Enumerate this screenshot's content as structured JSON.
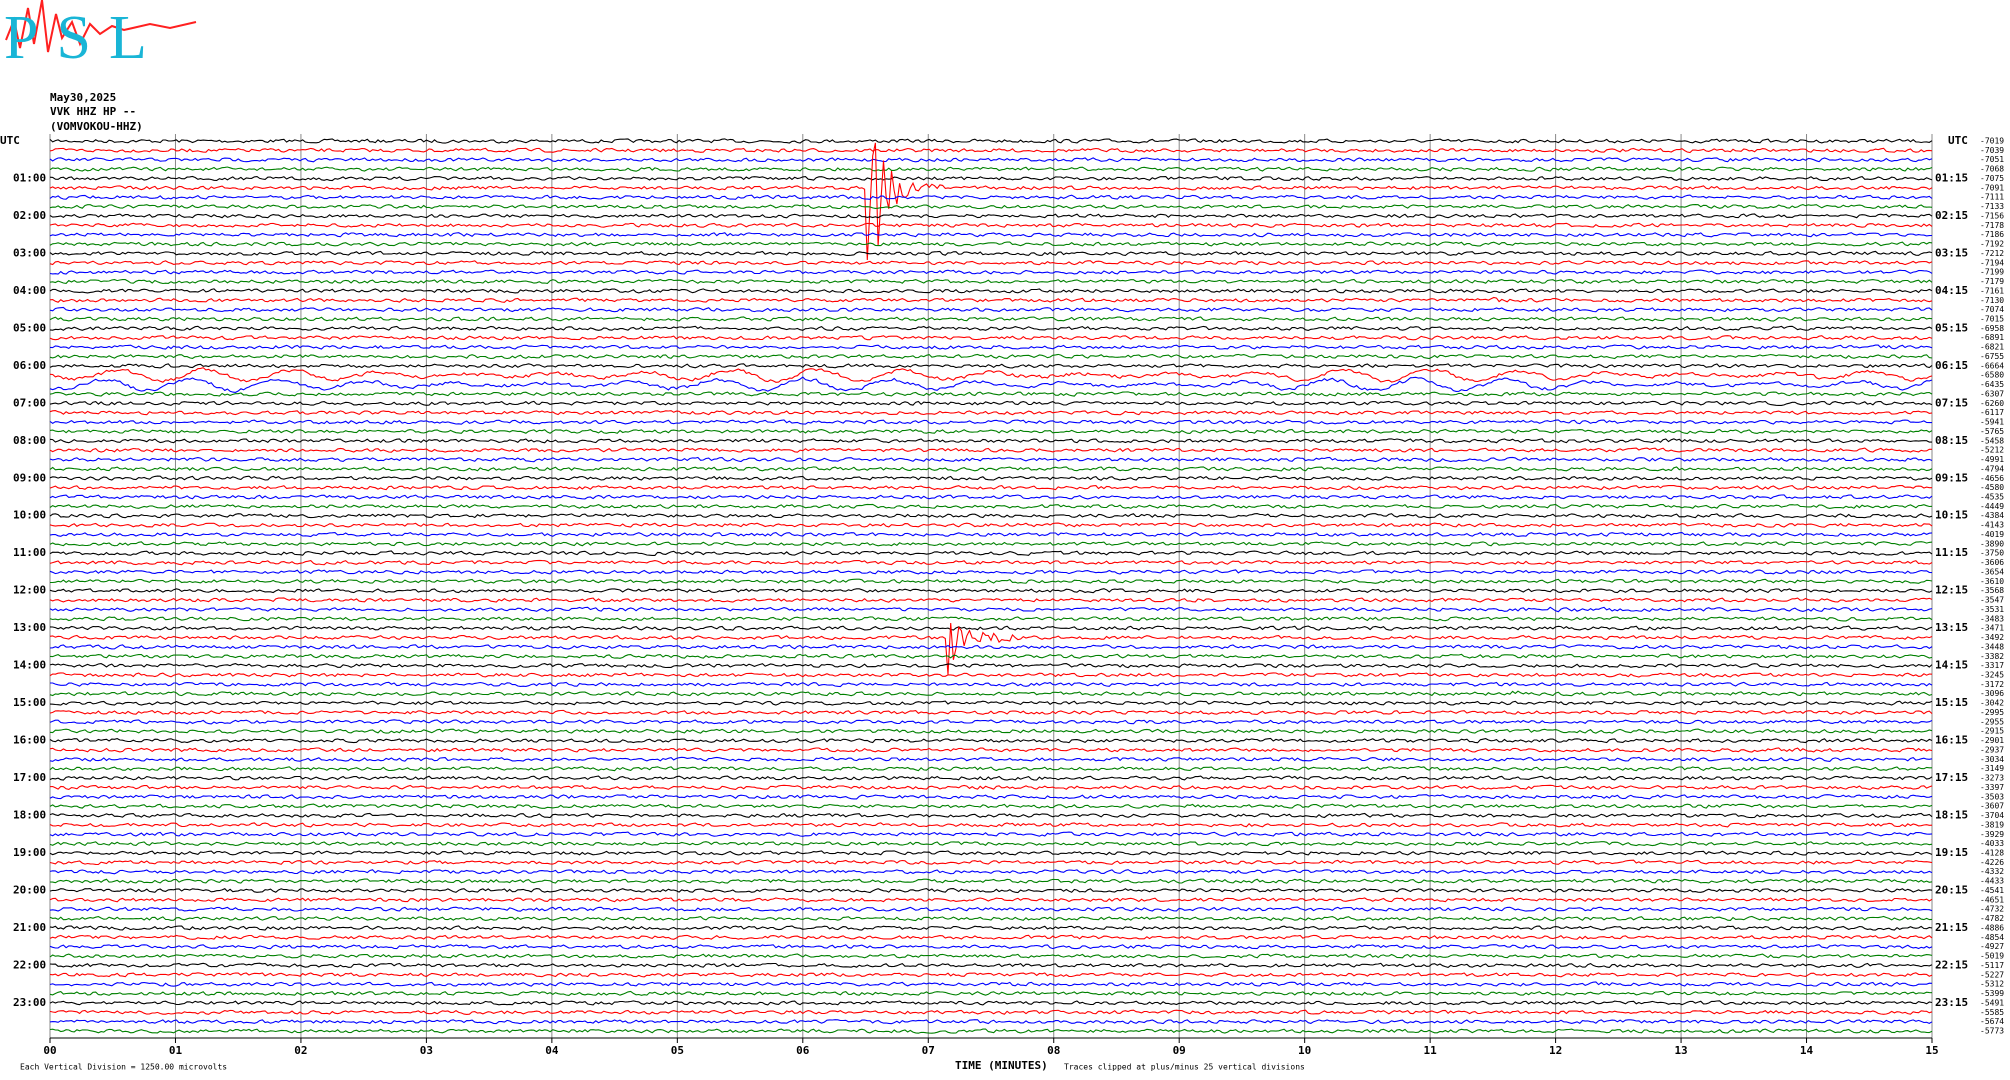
{
  "chart_data": {
    "type": "helicorder",
    "logo": "PSL",
    "date": "May30,2025",
    "station": "VVK HHZ HP --",
    "channel": "(VOMVOKOU-HHZ)",
    "left_axis_title": "UTC",
    "right_axis_title": "UTC",
    "left_labels": [
      "01:00",
      "02:00",
      "03:00",
      "04:00",
      "05:00",
      "06:00",
      "07:00",
      "08:00",
      "09:00",
      "10:00",
      "11:00",
      "12:00",
      "13:00",
      "14:00",
      "15:00",
      "16:00",
      "17:00",
      "18:00",
      "19:00",
      "20:00",
      "21:00",
      "22:00",
      "23:00"
    ],
    "right_labels": [
      "01:15",
      "02:15",
      "03:15",
      "04:15",
      "05:15",
      "06:15",
      "07:15",
      "08:15",
      "09:15",
      "10:15",
      "11:15",
      "12:15",
      "13:15",
      "14:15",
      "15:15",
      "16:15",
      "17:15",
      "18:15",
      "19:15",
      "20:15",
      "21:15",
      "22:15",
      "23:15"
    ],
    "trace_offsets": [
      -7019,
      -7039,
      -7051,
      -7068,
      -7075,
      -7091,
      -7111,
      -7133,
      -7156,
      -7178,
      -7186,
      -7192,
      -7212,
      -7194,
      -7199,
      -7179,
      -7161,
      -7130,
      -7074,
      -7015,
      -6958,
      -6891,
      -6821,
      -6755,
      -6664,
      -6580,
      -6435,
      -6307,
      -6260,
      -6117,
      -5941,
      -5765,
      -5458,
      -5212,
      -4991,
      -4794,
      -4656,
      -4580,
      -4535,
      -4449,
      -4384,
      -4143,
      -4019,
      -3890,
      -3750,
      -3606,
      -3654,
      -3610,
      -3568,
      -3547,
      -3531,
      -3483,
      -3471,
      -3492,
      -3448,
      -3382,
      -3317,
      -3245,
      -3172,
      -3096,
      -3042,
      -2995,
      -2955,
      -2915,
      -2901,
      -2937,
      -3034,
      -3149,
      -3273,
      -3397,
      -3503,
      -3607,
      -3704,
      -3819,
      -3929,
      -4033,
      -4128,
      -4226,
      -4332,
      -4433,
      -4541,
      -4651,
      -4732,
      -4782,
      -4886,
      -4854,
      -4927,
      -5019,
      -5117,
      -5227,
      -5312,
      -5399,
      -5491,
      -5585,
      -5674,
      -5773
    ],
    "trace_colors": [
      "#000000",
      "#ff0000",
      "#0000ff",
      "#008000"
    ],
    "xlim": [
      0,
      15
    ],
    "xticks": [
      {
        "value": 0,
        "label": "00"
      },
      {
        "value": 1,
        "label": "01"
      },
      {
        "value": 2,
        "label": "02"
      },
      {
        "value": 3,
        "label": "03"
      },
      {
        "value": 4,
        "label": "04"
      },
      {
        "value": 5,
        "label": "05"
      },
      {
        "value": 6,
        "label": "06"
      },
      {
        "value": 7,
        "label": "07"
      },
      {
        "value": 8,
        "label": "08"
      },
      {
        "value": 9,
        "label": "09"
      },
      {
        "value": 10,
        "label": "10"
      },
      {
        "value": 11,
        "label": "11"
      },
      {
        "value": 12,
        "label": "12"
      },
      {
        "value": 13,
        "label": "13"
      },
      {
        "value": 14,
        "label": "14"
      },
      {
        "value": 15,
        "label": "15"
      }
    ],
    "x_label": "TIME (MINUTES)",
    "scale_note": "Each Vertical Division = 1250.00 microvolts",
    "clip_note": "Traces clipped at plus/minus 25 vertical divisions",
    "grid": true
  }
}
